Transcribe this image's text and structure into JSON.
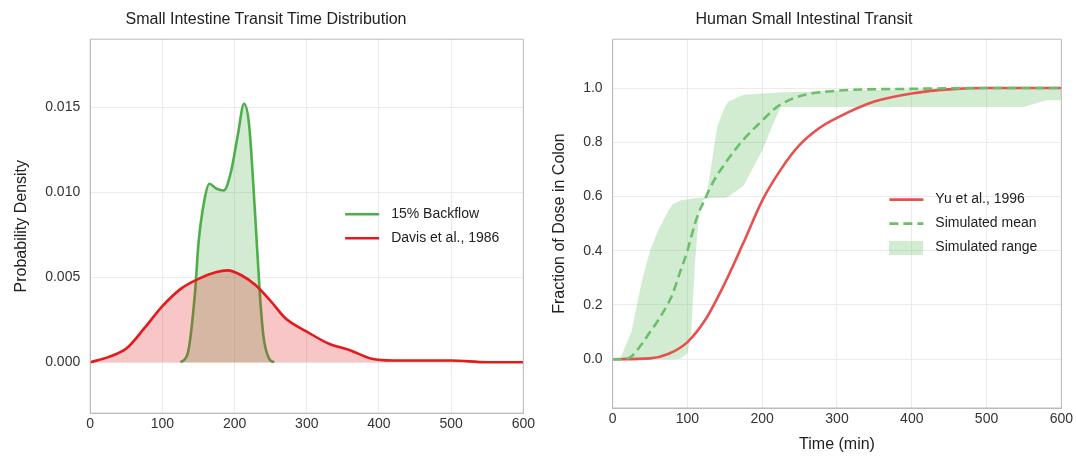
{
  "chart_data": [
    {
      "type": "area",
      "title": "Small Intestine Transit Time Distribution",
      "ylabel": "Probability Density",
      "xlim": [
        0,
        600
      ],
      "xticks": [
        0,
        100,
        200,
        300,
        400,
        500,
        600
      ],
      "ylim": [
        -0.003,
        0.019
      ],
      "yticks": [
        {
          "value": 0,
          "label": "0.000"
        },
        {
          "value": 0.005,
          "label": "0.005"
        },
        {
          "value": 0.01,
          "label": "0.010"
        },
        {
          "value": 0.015,
          "label": "0.015"
        }
      ],
      "grid": true,
      "legend": "right",
      "marker": "none",
      "series": [
        {
          "name": "15% Backflow",
          "color": "#4daf4a",
          "x": [
            125,
            135,
            145,
            150,
            158,
            165,
            175,
            185,
            195,
            205,
            213,
            220,
            228,
            235,
            240,
            248,
            255
          ],
          "values": [
            0,
            0.0005,
            0.004,
            0.007,
            0.0095,
            0.0105,
            0.0102,
            0.0101,
            0.0112,
            0.0135,
            0.0152,
            0.014,
            0.009,
            0.004,
            0.0015,
            0.0002,
            0
          ]
        },
        {
          "name": "Davis et al., 1986",
          "color": "#e41a1c",
          "x": [
            0,
            25,
            50,
            75,
            100,
            125,
            150,
            175,
            190,
            210,
            230,
            250,
            270,
            300,
            330,
            360,
            390,
            420,
            450,
            500,
            550,
            600
          ],
          "values": [
            0,
            0.0003,
            0.0008,
            0.002,
            0.0033,
            0.0043,
            0.0049,
            0.0053,
            0.0054,
            0.0051,
            0.0045,
            0.0036,
            0.0026,
            0.0018,
            0.0011,
            0.0007,
            0.0002,
            0.0001,
            0.0001,
            0.0001,
            0,
            0
          ]
        }
      ]
    },
    {
      "type": "line",
      "title": "Human Small Intestinal Transit",
      "xlabel": "Time (min)",
      "ylabel": "Fraction of Dose in Colon",
      "xlim": [
        0,
        600
      ],
      "xticks": [
        0,
        100,
        200,
        300,
        400,
        500,
        600
      ],
      "ylim": [
        -0.18,
        1.18
      ],
      "yticks": [
        {
          "value": 0,
          "label": "0.0"
        },
        {
          "value": 0.2,
          "label": "0.2"
        },
        {
          "value": 0.4,
          "label": "0.4"
        },
        {
          "value": 0.6,
          "label": "0.6"
        },
        {
          "value": 0.8,
          "label": "0.8"
        },
        {
          "value": 1,
          "label": "1.0"
        }
      ],
      "grid": true,
      "legend": "right",
      "marker": "none",
      "annotations": [
        "Simulated range"
      ],
      "series": [
        {
          "name": "Yu et al., 1996",
          "color": "#e8504f",
          "line_style": "solid",
          "x": [
            0,
            50,
            75,
            100,
            125,
            150,
            175,
            200,
            225,
            250,
            275,
            300,
            350,
            400,
            450,
            500,
            600
          ],
          "values": [
            0,
            0.003,
            0.02,
            0.063,
            0.15,
            0.28,
            0.43,
            0.585,
            0.7,
            0.79,
            0.85,
            0.89,
            0.95,
            0.98,
            0.995,
            1,
            1
          ]
        },
        {
          "name": "Simulated mean",
          "color": "#6abf69",
          "line_style": "dashed",
          "x": [
            0,
            10,
            25,
            40,
            50,
            60,
            75,
            80,
            90,
            100,
            105,
            110,
            115,
            120,
            125,
            130,
            140,
            150,
            155,
            175,
            200,
            215,
            225,
            250,
            300,
            400,
            500,
            550,
            580,
            600
          ],
          "values": [
            0,
            0,
            0.01,
            0.06,
            0.1,
            0.14,
            0.21,
            0.24,
            0.32,
            0.4,
            0.45,
            0.5,
            0.54,
            0.57,
            0.6,
            0.63,
            0.68,
            0.72,
            0.74,
            0.81,
            0.88,
            0.92,
            0.94,
            0.97,
            0.99,
            0.997,
            1,
            1,
            1,
            1
          ],
          "lower": [
            0,
            0,
            0,
            0,
            0,
            0,
            0,
            0,
            0.002,
            0.02,
            0.1,
            0.35,
            0.52,
            0.585,
            0.592,
            0.594,
            0.595,
            0.595,
            0.6,
            0.64,
            0.77,
            0.87,
            0.93,
            0.93,
            0.93,
            0.93,
            0.93,
            0.93,
            0.955,
            0.955
          ],
          "upper": [
            0,
            0.002,
            0.1,
            0.3,
            0.4,
            0.47,
            0.55,
            0.57,
            0.585,
            0.59,
            0.592,
            0.594,
            0.595,
            0.595,
            0.6,
            0.68,
            0.86,
            0.93,
            0.95,
            0.975,
            0.98,
            0.982,
            0.984,
            0.985,
            0.99,
            0.995,
            1,
            1,
            1,
            1
          ]
        }
      ]
    }
  ]
}
